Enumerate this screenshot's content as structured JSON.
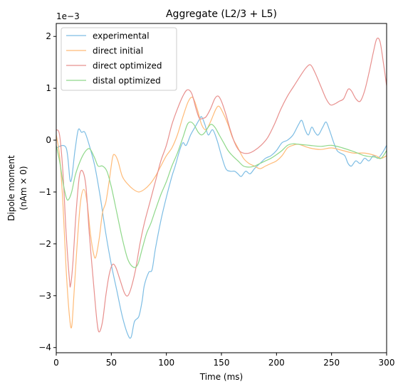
{
  "chart_data": {
    "type": "line",
    "title": "Aggregate (L2/3 + L5)",
    "xlabel": "Time (ms)",
    "ylabel_line1": "Dipole moment",
    "ylabel_line2": "(nAm × 0)",
    "offset_label": "1e−3",
    "xlim": [
      0,
      300
    ],
    "ylim": [
      -4.1,
      2.25
    ],
    "xticks": [
      0,
      50,
      100,
      150,
      200,
      250,
      300
    ],
    "yticks": [
      -4,
      -3,
      -2,
      -1,
      0,
      1,
      2
    ],
    "ytick_labels": [
      "−4",
      "−3",
      "−2",
      "−1",
      "0",
      "1",
      "2"
    ],
    "grid": false,
    "legend_position": "top-left",
    "series": [
      {
        "name": "experimental",
        "color": "#7dbde4",
        "points": [
          [
            0,
            -0.15
          ],
          [
            9,
            -0.15
          ],
          [
            13,
            -0.8
          ],
          [
            17,
            -0.2
          ],
          [
            20,
            0.2
          ],
          [
            23,
            0.15
          ],
          [
            26,
            0.15
          ],
          [
            30,
            -0.1
          ],
          [
            35,
            -0.5
          ],
          [
            40,
            -1.1
          ],
          [
            45,
            -1.8
          ],
          [
            50,
            -2.4
          ],
          [
            55,
            -2.9
          ],
          [
            60,
            -3.4
          ],
          [
            65,
            -3.75
          ],
          [
            68,
            -3.8
          ],
          [
            71,
            -3.5
          ],
          [
            75,
            -3.4
          ],
          [
            78,
            -3.1
          ],
          [
            80,
            -2.8
          ],
          [
            84,
            -2.55
          ],
          [
            87,
            -2.5
          ],
          [
            90,
            -2.1
          ],
          [
            95,
            -1.55
          ],
          [
            100,
            -1.1
          ],
          [
            105,
            -0.7
          ],
          [
            108,
            -0.5
          ],
          [
            112,
            -0.2
          ],
          [
            115,
            -0.05
          ],
          [
            118,
            -0.1
          ],
          [
            122,
            0.1
          ],
          [
            126,
            0.25
          ],
          [
            130,
            0.4
          ],
          [
            132,
            0.45
          ],
          [
            135,
            0.3
          ],
          [
            138,
            0.1
          ],
          [
            142,
            0.2
          ],
          [
            146,
            0.0
          ],
          [
            150,
            -0.3
          ],
          [
            154,
            -0.55
          ],
          [
            158,
            -0.6
          ],
          [
            162,
            -0.6
          ],
          [
            165,
            -0.65
          ],
          [
            168,
            -0.7
          ],
          [
            172,
            -0.6
          ],
          [
            176,
            -0.65
          ],
          [
            180,
            -0.55
          ],
          [
            185,
            -0.45
          ],
          [
            190,
            -0.35
          ],
          [
            195,
            -0.3
          ],
          [
            200,
            -0.2
          ],
          [
            205,
            -0.05
          ],
          [
            210,
            0.0
          ],
          [
            215,
            0.1
          ],
          [
            220,
            0.3
          ],
          [
            223,
            0.38
          ],
          [
            226,
            0.2
          ],
          [
            229,
            0.1
          ],
          [
            232,
            0.25
          ],
          [
            235,
            0.15
          ],
          [
            238,
            0.1
          ],
          [
            242,
            0.25
          ],
          [
            245,
            0.35
          ],
          [
            248,
            0.2
          ],
          [
            252,
            -0.05
          ],
          [
            255,
            -0.2
          ],
          [
            258,
            -0.25
          ],
          [
            262,
            -0.3
          ],
          [
            265,
            -0.45
          ],
          [
            268,
            -0.5
          ],
          [
            272,
            -0.4
          ],
          [
            276,
            -0.45
          ],
          [
            280,
            -0.35
          ],
          [
            284,
            -0.4
          ],
          [
            288,
            -0.3
          ],
          [
            292,
            -0.35
          ],
          [
            296,
            -0.25
          ],
          [
            300,
            -0.1
          ]
        ]
      },
      {
        "name": "direct initial",
        "color": "#ffbb78",
        "points": [
          [
            0,
            0.1
          ],
          [
            3,
            -0.3
          ],
          [
            6,
            -1.2
          ],
          [
            9,
            -2.5
          ],
          [
            12,
            -3.4
          ],
          [
            14,
            -3.6
          ],
          [
            16,
            -3.0
          ],
          [
            19,
            -2.0
          ],
          [
            22,
            -1.2
          ],
          [
            25,
            -0.95
          ],
          [
            28,
            -1.2
          ],
          [
            31,
            -1.8
          ],
          [
            34,
            -2.2
          ],
          [
            36,
            -2.25
          ],
          [
            39,
            -1.9
          ],
          [
            42,
            -1.4
          ],
          [
            45,
            -1.2
          ],
          [
            48,
            -0.8
          ],
          [
            51,
            -0.35
          ],
          [
            53,
            -0.28
          ],
          [
            56,
            -0.4
          ],
          [
            60,
            -0.7
          ],
          [
            65,
            -0.85
          ],
          [
            70,
            -0.95
          ],
          [
            75,
            -1.0
          ],
          [
            80,
            -0.95
          ],
          [
            85,
            -0.85
          ],
          [
            90,
            -0.7
          ],
          [
            95,
            -0.5
          ],
          [
            100,
            -0.3
          ],
          [
            105,
            -0.15
          ],
          [
            110,
            0.1
          ],
          [
            115,
            0.45
          ],
          [
            120,
            0.75
          ],
          [
            124,
            0.82
          ],
          [
            128,
            0.6
          ],
          [
            132,
            0.3
          ],
          [
            136,
            0.2
          ],
          [
            140,
            0.35
          ],
          [
            145,
            0.6
          ],
          [
            148,
            0.65
          ],
          [
            152,
            0.5
          ],
          [
            156,
            0.3
          ],
          [
            160,
            0.05
          ],
          [
            165,
            -0.15
          ],
          [
            170,
            -0.35
          ],
          [
            175,
            -0.45
          ],
          [
            180,
            -0.5
          ],
          [
            185,
            -0.55
          ],
          [
            190,
            -0.5
          ],
          [
            195,
            -0.45
          ],
          [
            200,
            -0.4
          ],
          [
            205,
            -0.3
          ],
          [
            210,
            -0.15
          ],
          [
            215,
            -0.1
          ],
          [
            220,
            -0.08
          ],
          [
            230,
            -0.15
          ],
          [
            240,
            -0.18
          ],
          [
            250,
            -0.15
          ],
          [
            260,
            -0.2
          ],
          [
            270,
            -0.25
          ],
          [
            280,
            -0.25
          ],
          [
            290,
            -0.3
          ],
          [
            295,
            -0.35
          ],
          [
            300,
            -0.3
          ]
        ]
      },
      {
        "name": "direct optimized",
        "color": "#e8908e",
        "points": [
          [
            0,
            0.2
          ],
          [
            3,
            0.1
          ],
          [
            6,
            -0.6
          ],
          [
            9,
            -1.8
          ],
          [
            12,
            -2.7
          ],
          [
            13,
            -2.8
          ],
          [
            15,
            -2.4
          ],
          [
            18,
            -1.4
          ],
          [
            21,
            -0.7
          ],
          [
            24,
            -0.6
          ],
          [
            27,
            -0.9
          ],
          [
            30,
            -1.8
          ],
          [
            34,
            -2.8
          ],
          [
            37,
            -3.5
          ],
          [
            39,
            -3.7
          ],
          [
            42,
            -3.5
          ],
          [
            45,
            -3.0
          ],
          [
            48,
            -2.6
          ],
          [
            51,
            -2.4
          ],
          [
            54,
            -2.45
          ],
          [
            58,
            -2.7
          ],
          [
            62,
            -2.95
          ],
          [
            65,
            -3.0
          ],
          [
            68,
            -2.85
          ],
          [
            72,
            -2.5
          ],
          [
            76,
            -2.0
          ],
          [
            80,
            -1.6
          ],
          [
            85,
            -1.2
          ],
          [
            90,
            -0.8
          ],
          [
            95,
            -0.4
          ],
          [
            100,
            -0.1
          ],
          [
            105,
            0.3
          ],
          [
            110,
            0.6
          ],
          [
            115,
            0.85
          ],
          [
            119,
            0.97
          ],
          [
            123,
            0.9
          ],
          [
            127,
            0.6
          ],
          [
            130,
            0.42
          ],
          [
            133,
            0.42
          ],
          [
            136,
            0.45
          ],
          [
            140,
            0.6
          ],
          [
            144,
            0.8
          ],
          [
            147,
            0.85
          ],
          [
            150,
            0.75
          ],
          [
            154,
            0.5
          ],
          [
            158,
            0.2
          ],
          [
            162,
            -0.05
          ],
          [
            166,
            -0.2
          ],
          [
            170,
            -0.25
          ],
          [
            175,
            -0.25
          ],
          [
            180,
            -0.2
          ],
          [
            186,
            -0.1
          ],
          [
            192,
            0.05
          ],
          [
            198,
            0.3
          ],
          [
            204,
            0.6
          ],
          [
            210,
            0.85
          ],
          [
            216,
            1.05
          ],
          [
            222,
            1.25
          ],
          [
            227,
            1.4
          ],
          [
            231,
            1.45
          ],
          [
            235,
            1.3
          ],
          [
            240,
            1.05
          ],
          [
            245,
            0.8
          ],
          [
            249,
            0.68
          ],
          [
            253,
            0.7
          ],
          [
            257,
            0.75
          ],
          [
            261,
            0.8
          ],
          [
            265,
            0.98
          ],
          [
            268,
            0.95
          ],
          [
            272,
            0.8
          ],
          [
            276,
            0.75
          ],
          [
            280,
            0.95
          ],
          [
            284,
            1.3
          ],
          [
            288,
            1.7
          ],
          [
            291,
            1.95
          ],
          [
            294,
            1.9
          ],
          [
            297,
            1.5
          ],
          [
            300,
            1.05
          ]
        ]
      },
      {
        "name": "distal optimized",
        "color": "#8fd88a",
        "points": [
          [
            0,
            -0.1
          ],
          [
            3,
            -0.4
          ],
          [
            6,
            -0.8
          ],
          [
            9,
            -1.1
          ],
          [
            11,
            -1.15
          ],
          [
            14,
            -1.0
          ],
          [
            17,
            -0.7
          ],
          [
            20,
            -0.5
          ],
          [
            24,
            -0.3
          ],
          [
            28,
            -0.18
          ],
          [
            31,
            -0.18
          ],
          [
            35,
            -0.35
          ],
          [
            38,
            -0.5
          ],
          [
            42,
            -0.5
          ],
          [
            46,
            -0.6
          ],
          [
            50,
            -0.9
          ],
          [
            55,
            -1.4
          ],
          [
            60,
            -1.9
          ],
          [
            65,
            -2.3
          ],
          [
            70,
            -2.45
          ],
          [
            74,
            -2.4
          ],
          [
            78,
            -2.1
          ],
          [
            82,
            -1.8
          ],
          [
            86,
            -1.6
          ],
          [
            90,
            -1.35
          ],
          [
            95,
            -1.05
          ],
          [
            100,
            -0.8
          ],
          [
            105,
            -0.5
          ],
          [
            110,
            -0.25
          ],
          [
            115,
            0.05
          ],
          [
            119,
            0.3
          ],
          [
            122,
            0.35
          ],
          [
            125,
            0.3
          ],
          [
            129,
            0.15
          ],
          [
            132,
            0.1
          ],
          [
            135,
            0.15
          ],
          [
            140,
            0.3
          ],
          [
            144,
            0.25
          ],
          [
            148,
            0.1
          ],
          [
            152,
            -0.05
          ],
          [
            156,
            -0.2
          ],
          [
            160,
            -0.3
          ],
          [
            165,
            -0.4
          ],
          [
            170,
            -0.5
          ],
          [
            175,
            -0.52
          ],
          [
            180,
            -0.5
          ],
          [
            185,
            -0.45
          ],
          [
            190,
            -0.4
          ],
          [
            195,
            -0.35
          ],
          [
            200,
            -0.28
          ],
          [
            205,
            -0.2
          ],
          [
            210,
            -0.1
          ],
          [
            215,
            -0.07
          ],
          [
            220,
            -0.08
          ],
          [
            230,
            -0.1
          ],
          [
            240,
            -0.12
          ],
          [
            250,
            -0.1
          ],
          [
            260,
            -0.15
          ],
          [
            270,
            -0.22
          ],
          [
            280,
            -0.3
          ],
          [
            290,
            -0.33
          ],
          [
            295,
            -0.35
          ],
          [
            300,
            -0.2
          ]
        ]
      }
    ]
  }
}
